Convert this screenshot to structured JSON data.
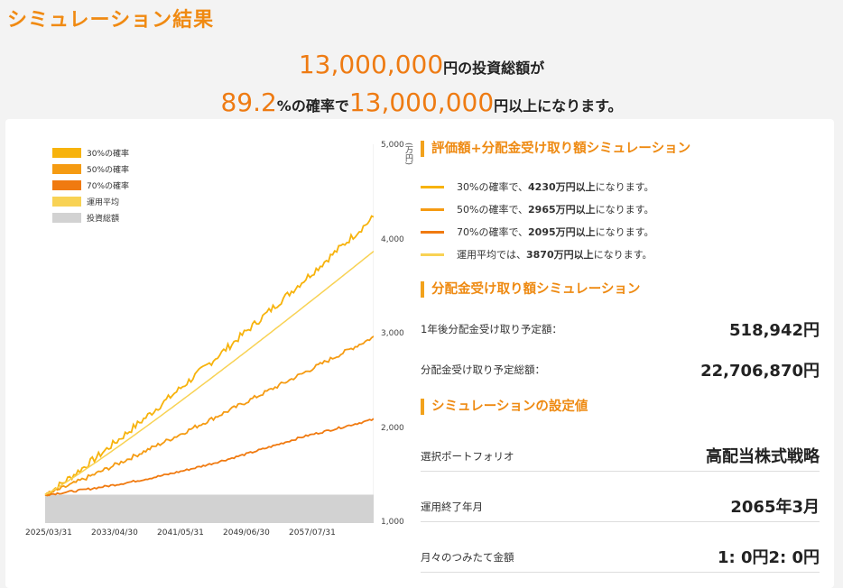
{
  "page": {
    "title": "シミュレーション結果"
  },
  "headline": {
    "amount": "13,000,000",
    "amount_suffix": "円の投資総額が",
    "probability": "89.2",
    "probability_suffix": "%の確率で",
    "target": "13,000,000",
    "target_suffix": "円以上になります。"
  },
  "legend": {
    "items": [
      {
        "label": "30%の確率",
        "color": "#f7b30c"
      },
      {
        "label": "50%の確率",
        "color": "#f59b12"
      },
      {
        "label": "70%の確率",
        "color": "#f07a10"
      },
      {
        "label": "運用平均",
        "color": "#f8d254"
      },
      {
        "label": "投資総額",
        "color": "#d2d2d2"
      }
    ]
  },
  "chart_data": {
    "type": "line",
    "ylabel": "(万円)",
    "ylim": [
      1000,
      5000
    ],
    "y_ticks": [
      "5,000",
      "4,000",
      "3,000",
      "2,000",
      "1,000"
    ],
    "x_ticks": [
      "2025/03/31",
      "2033/04/30",
      "2041/05/31",
      "2049/06/30",
      "2057/07/31"
    ],
    "x_range": [
      2025.25,
      2065.2
    ],
    "series": [
      {
        "name": "投資総額",
        "start": 1300,
        "end": 1300,
        "color": "#d2d2d2"
      },
      {
        "name": "30%の確率",
        "start": 1300,
        "end": 4230,
        "color": "#f7b30c"
      },
      {
        "name": "50%の確率",
        "start": 1300,
        "end": 2965,
        "color": "#f59b12"
      },
      {
        "name": "70%の確率",
        "start": 1300,
        "end": 2095,
        "color": "#f07a10"
      },
      {
        "name": "運用平均",
        "start": 1300,
        "end": 3870,
        "color": "#f8d254"
      }
    ]
  },
  "section1": {
    "title": "評価額+分配金受け取り額シミュレーション",
    "lines": [
      {
        "pre": "30%の確率で、",
        "value": "4230万円以上",
        "post": "になります。",
        "color": "#f7b30c"
      },
      {
        "pre": "50%の確率で、",
        "value": "2965万円以上",
        "post": "になります。",
        "color": "#f59b12"
      },
      {
        "pre": "70%の確率で、",
        "value": "2095万円以上",
        "post": "になります。",
        "color": "#f07a10"
      },
      {
        "pre": "運用平均では、",
        "value": "3870万円以上",
        "post": "になります。",
        "color": "#f8d254"
      }
    ]
  },
  "section2": {
    "title": "分配金受け取り額シミュレーション",
    "rows": [
      {
        "label": "1年後分配金受け取り予定額：",
        "value": "518,942円"
      },
      {
        "label": "分配金受け取り予定総額：",
        "value": "22,706,870円"
      }
    ]
  },
  "section3": {
    "title": "シミュレーションの設定値",
    "rows": [
      {
        "label": "選択ポートフォリオ",
        "value": "高配当株式戦略"
      },
      {
        "label": "運用終了年月",
        "value": "2065年3月"
      },
      {
        "label": "月々のつみたて金額",
        "value": "1: 0円2: 0円"
      }
    ]
  }
}
